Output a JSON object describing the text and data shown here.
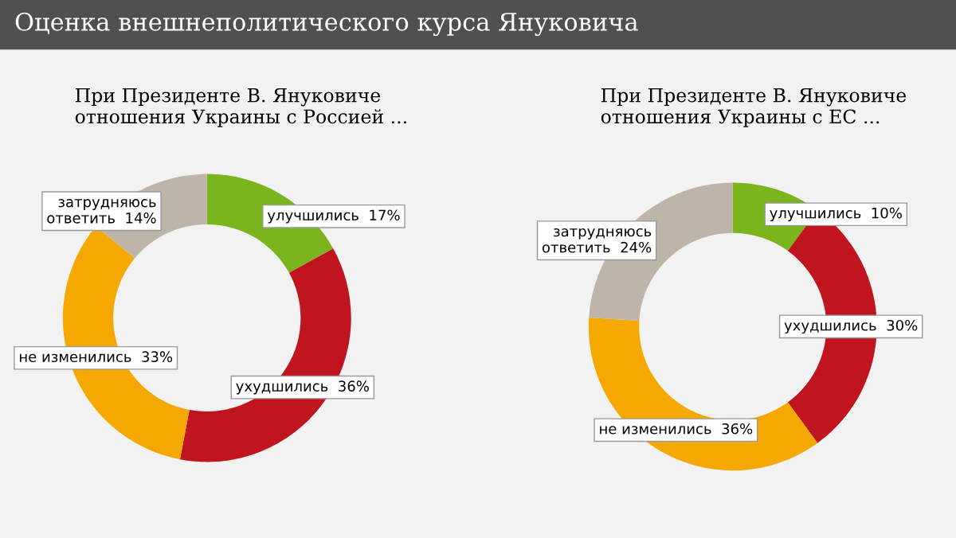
{
  "chart_data": [
    {
      "type": "donut",
      "title": "Оценка внешнеполитического курса Януковича",
      "subtitle": "При Президенте В. Януковиче\nотношения Украины с Россией ...",
      "categories": [
        "улучшились",
        "ухудшились",
        "не изменились",
        "затрудняюсь\nответить"
      ],
      "values": [
        17,
        36,
        33,
        14
      ],
      "value_labels": [
        "17%",
        "36%",
        "33%",
        "14%"
      ],
      "colors": [
        "#7ab51d",
        "#c0141e",
        "#f5a800",
        "#bdb5a8"
      ]
    },
    {
      "type": "donut",
      "subtitle": "При Президенте В. Януковиче\nотношения Украины с ЕС ...",
      "categories": [
        "улучшились",
        "ухудшились",
        "не изменились",
        "затрудняюсь\nответить"
      ],
      "values": [
        10,
        30,
        36,
        24
      ],
      "value_labels": [
        "10%",
        "30%",
        "36%",
        "24%"
      ],
      "colors": [
        "#7ab51d",
        "#c0141e",
        "#f5a800",
        "#bdb5a8"
      ]
    }
  ]
}
